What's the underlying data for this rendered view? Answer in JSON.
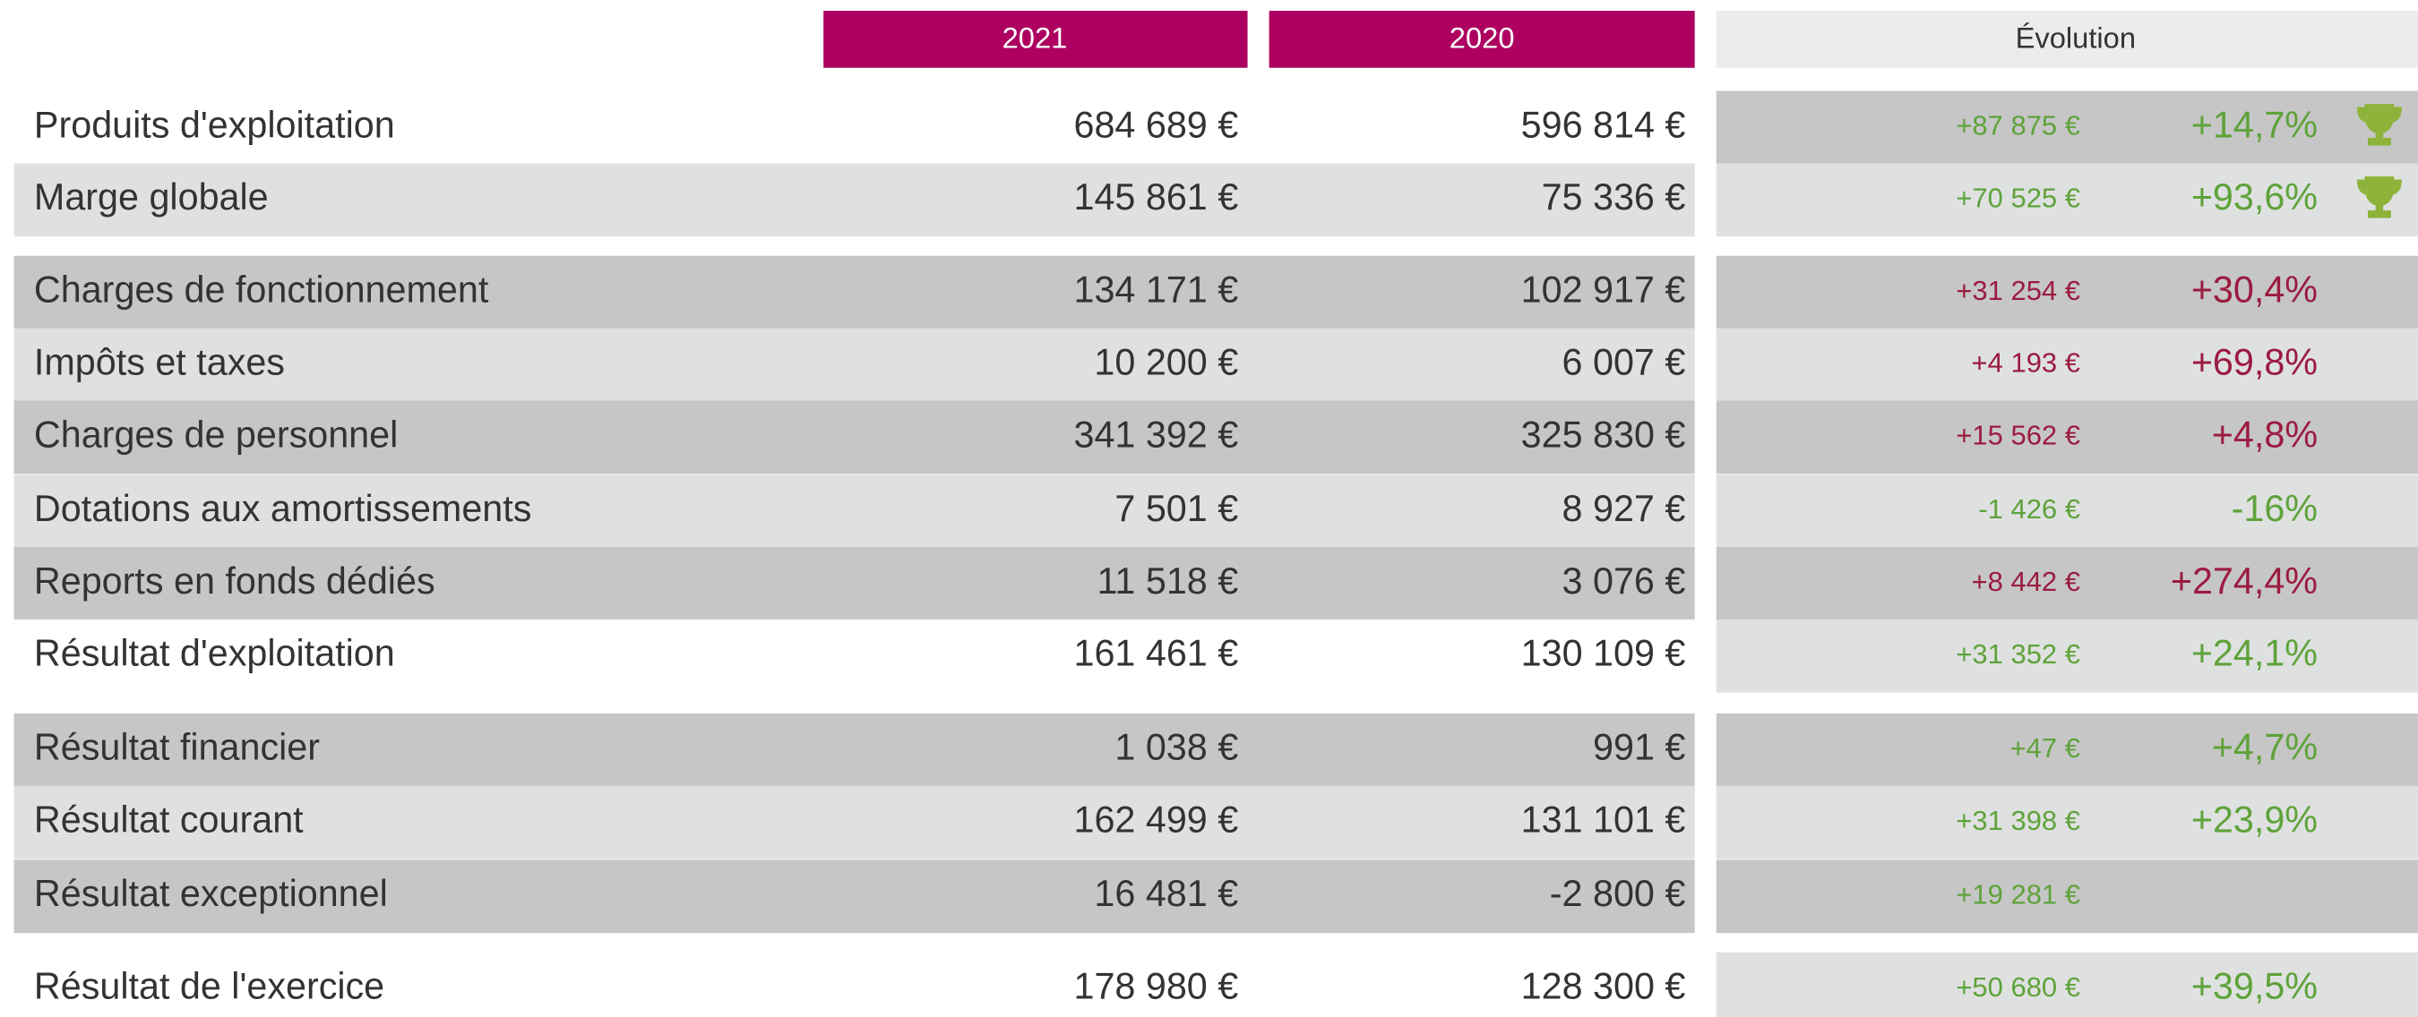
{
  "header": {
    "columns": [
      "2021",
      "2020",
      "Évolution"
    ]
  },
  "table": {
    "rows": [
      {
        "label": "Produits d'exploitation",
        "y2021": "684 689 €",
        "y2020": "596 814 €",
        "delta": "+87 875 €",
        "pct": "+14,7%",
        "color": "#5ea33a",
        "trophy": true,
        "left_bg": "#ffffff",
        "evolution_bg": "#c6c6c6"
      },
      {
        "label": "Marge globale",
        "y2021": "145 861 €",
        "y2020": "75 336 €",
        "delta": "+70 525 €",
        "pct": "+93,6%",
        "color": "#5ea33a",
        "trophy": true,
        "left_bg": "#dfe1e1",
        "evolution_bg": "#dfe1e1"
      },
      {
        "label": "Charges de fonctionnement",
        "y2021": "134 171 €",
        "y2020": "102 917 €",
        "delta": "+31 254 €",
        "pct": "+30,4%",
        "color": "#9b1b40",
        "left_bg": "#c6c6c6",
        "evolution_bg": "#c6c6c6"
      },
      {
        "label": "Impôts et taxes",
        "y2021": "10 200 €",
        "y2020": "6 007 €",
        "delta": "+4 193 €",
        "pct": "+69,8%",
        "color": "#9b1b40",
        "left_bg": "#dfe1e1",
        "evolution_bg": "#dfe1e1"
      },
      {
        "label": "Charges de personnel",
        "y2021": "341 392 €",
        "y2020": "325 830 €",
        "delta": "+15 562 €",
        "pct": "+4,8%",
        "color": "#9b1b40",
        "left_bg": "#c6c6c6",
        "evolution_bg": "#c6c6c6"
      },
      {
        "label": "Dotations aux amortissements",
        "y2021": "7 501 €",
        "y2020": "8 927 €",
        "delta": "-1 426 €",
        "pct": "-16%",
        "color": "#5ea33a",
        "left_bg": "#dfe1e1",
        "evolution_bg": "#dfe1e1"
      },
      {
        "label": "Reports en fonds dédiés",
        "y2021": "11 518 €",
        "y2020": "3 076 €",
        "delta": "+8 442 €",
        "pct": "+274,4%",
        "color": "#9b1b40",
        "left_bg": "#c6c6c6",
        "evolution_bg": "#c6c6c6"
      },
      {
        "label": "Résultat d'exploitation",
        "y2021": "161 461 €",
        "y2020": "130 109 €",
        "delta": "+31 352 €",
        "pct": "+24,1%",
        "color": "#5ea33a",
        "left_bg": "#ffffff",
        "evolution_bg": "#dfe1e1"
      },
      {
        "label": "Résultat financier",
        "y2021": "1 038 €",
        "y2020": "991 €",
        "delta": "+47 €",
        "pct": "+4,7%",
        "color": "#5ea33a",
        "left_bg": "#c6c6c6",
        "evolution_bg": "#c6c6c6"
      },
      {
        "label": "Résultat courant",
        "y2021": "162 499 €",
        "y2020": "131 101 €",
        "delta": "+31 398 €",
        "pct": "+23,9%",
        "color": "#5ea33a",
        "left_bg": "#dfe1e1",
        "evolution_bg": "#dfe1e1"
      },
      {
        "label": "Résultat exceptionnel",
        "y2021": "16 481 €",
        "y2020": "-2 800 €",
        "delta": "+19 281 €",
        "color": "#5ea33a",
        "left_bg": "#c6c6c6",
        "evolution_bg": "#c6c6c6"
      },
      {
        "label": "Résultat de l'exercice",
        "y2021": "178 980 €",
        "y2020": "128 300 €",
        "delta": "+50 680 €",
        "pct": "+39,5%",
        "color": "#5ea33a",
        "left_bg": "#ffffff",
        "evolution_bg": "#dfe1e1"
      }
    ]
  }
}
